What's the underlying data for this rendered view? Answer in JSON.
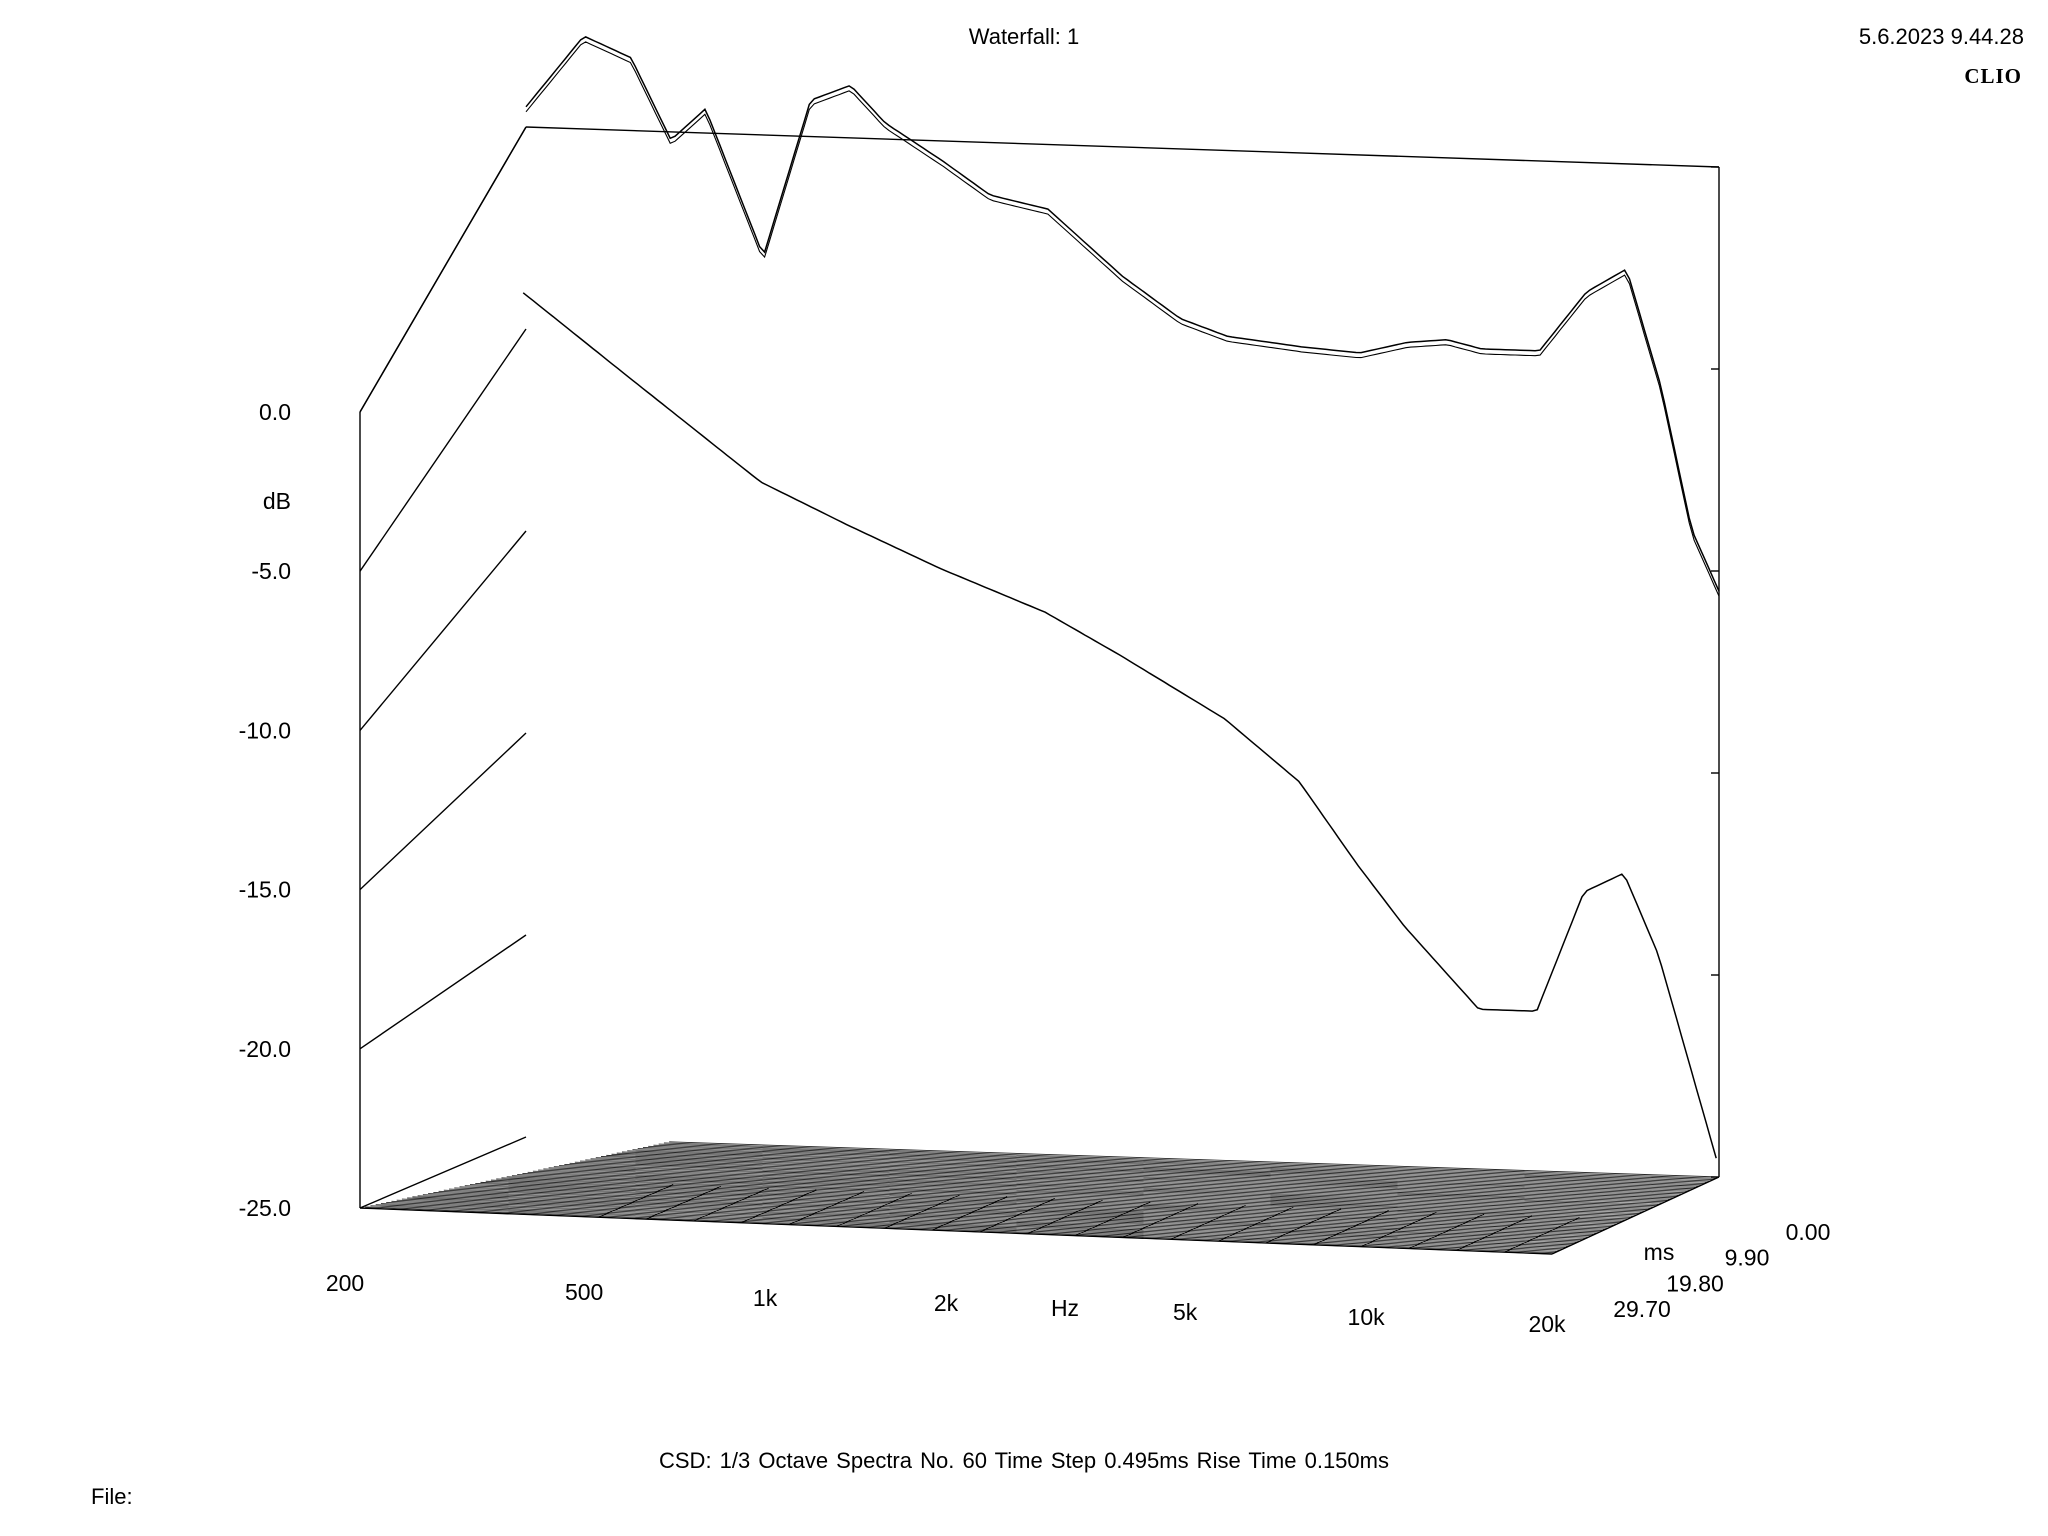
{
  "header": {
    "title": "Waterfall: 1",
    "timestamp": "5.6.2023 9.44.28",
    "brand": "CLIO"
  },
  "footer": {
    "params": "CSD:   1/3 Octave   Spectra No. 60   Time Step 0.495ms   Rise Time 0.150ms",
    "file_label": "File:"
  },
  "chart_data": {
    "type": "waterfall",
    "title": "Waterfall: 1",
    "xlabel": "Hz",
    "ylabel": "dB",
    "zlabel": "ms",
    "x_scale": "log",
    "xlim": [
      200,
      20000
    ],
    "ylim": [
      -25,
      0
    ],
    "zlim": [
      0,
      29.7
    ],
    "x_ticks": [
      {
        "value": 200,
        "label": "200"
      },
      {
        "value": 500,
        "label": "500"
      },
      {
        "value": 1000,
        "label": "1k"
      },
      {
        "value": 2000,
        "label": "2k"
      },
      {
        "value": 5000,
        "label": "5k"
      },
      {
        "value": 10000,
        "label": "10k"
      },
      {
        "value": 20000,
        "label": "20k"
      }
    ],
    "y_ticks": [
      {
        "value": 0,
        "label": "0.0"
      },
      {
        "value": -5,
        "label": "-5.0"
      },
      {
        "value": -10,
        "label": "-10.0"
      },
      {
        "value": -15,
        "label": "-15.0"
      },
      {
        "value": -20,
        "label": "-20.0"
      },
      {
        "value": -25,
        "label": "-25.0"
      }
    ],
    "z_ticks": [
      {
        "value": 0,
        "label": "0.00"
      },
      {
        "value": 9.9,
        "label": "9.90"
      },
      {
        "value": 19.8,
        "label": "19.80"
      },
      {
        "value": 29.7,
        "label": "29.70"
      }
    ],
    "spectra_count": 60,
    "time_step_ms": 0.495,
    "rise_time_ms": 0.15,
    "smoothing": "1/3 Octave",
    "series": [
      {
        "time_ms": 0,
        "freq_hz": [
          200,
          250,
          300,
          350,
          400,
          500,
          600,
          700,
          800,
          1000,
          1200,
          1500,
          2000,
          2500,
          3000,
          4000,
          5000,
          6000,
          7000,
          8000,
          10000,
          12000,
          14000,
          16000,
          18000,
          20000
        ],
        "db": [
          0.5,
          2.3,
          1.8,
          -0.2,
          0.6,
          -3.0,
          0.9,
          1.3,
          0.4,
          -0.5,
          -1.3,
          -1.6,
          -3.2,
          -4.2,
          -4.6,
          -4.8,
          -4.9,
          -4.6,
          -4.5,
          -4.7,
          -4.7,
          -3.2,
          -2.6,
          -5.5,
          -9.0,
          -10.5
        ]
      },
      {
        "time_ms": 0.495,
        "freq_hz": [
          200,
          300,
          500,
          700,
          1000,
          1500,
          2000,
          3000,
          4000,
          5000,
          6000,
          8000,
          10000,
          12000,
          14000,
          16000,
          20000
        ],
        "db": [
          -4.0,
          -6.0,
          -8.5,
          -9.5,
          -10.5,
          -11.5,
          -12.5,
          -14.0,
          -15.5,
          -17.5,
          -19.0,
          -21.0,
          -21.0,
          -18.0,
          -17.5,
          -19.5,
          -24.5
        ]
      }
    ]
  }
}
